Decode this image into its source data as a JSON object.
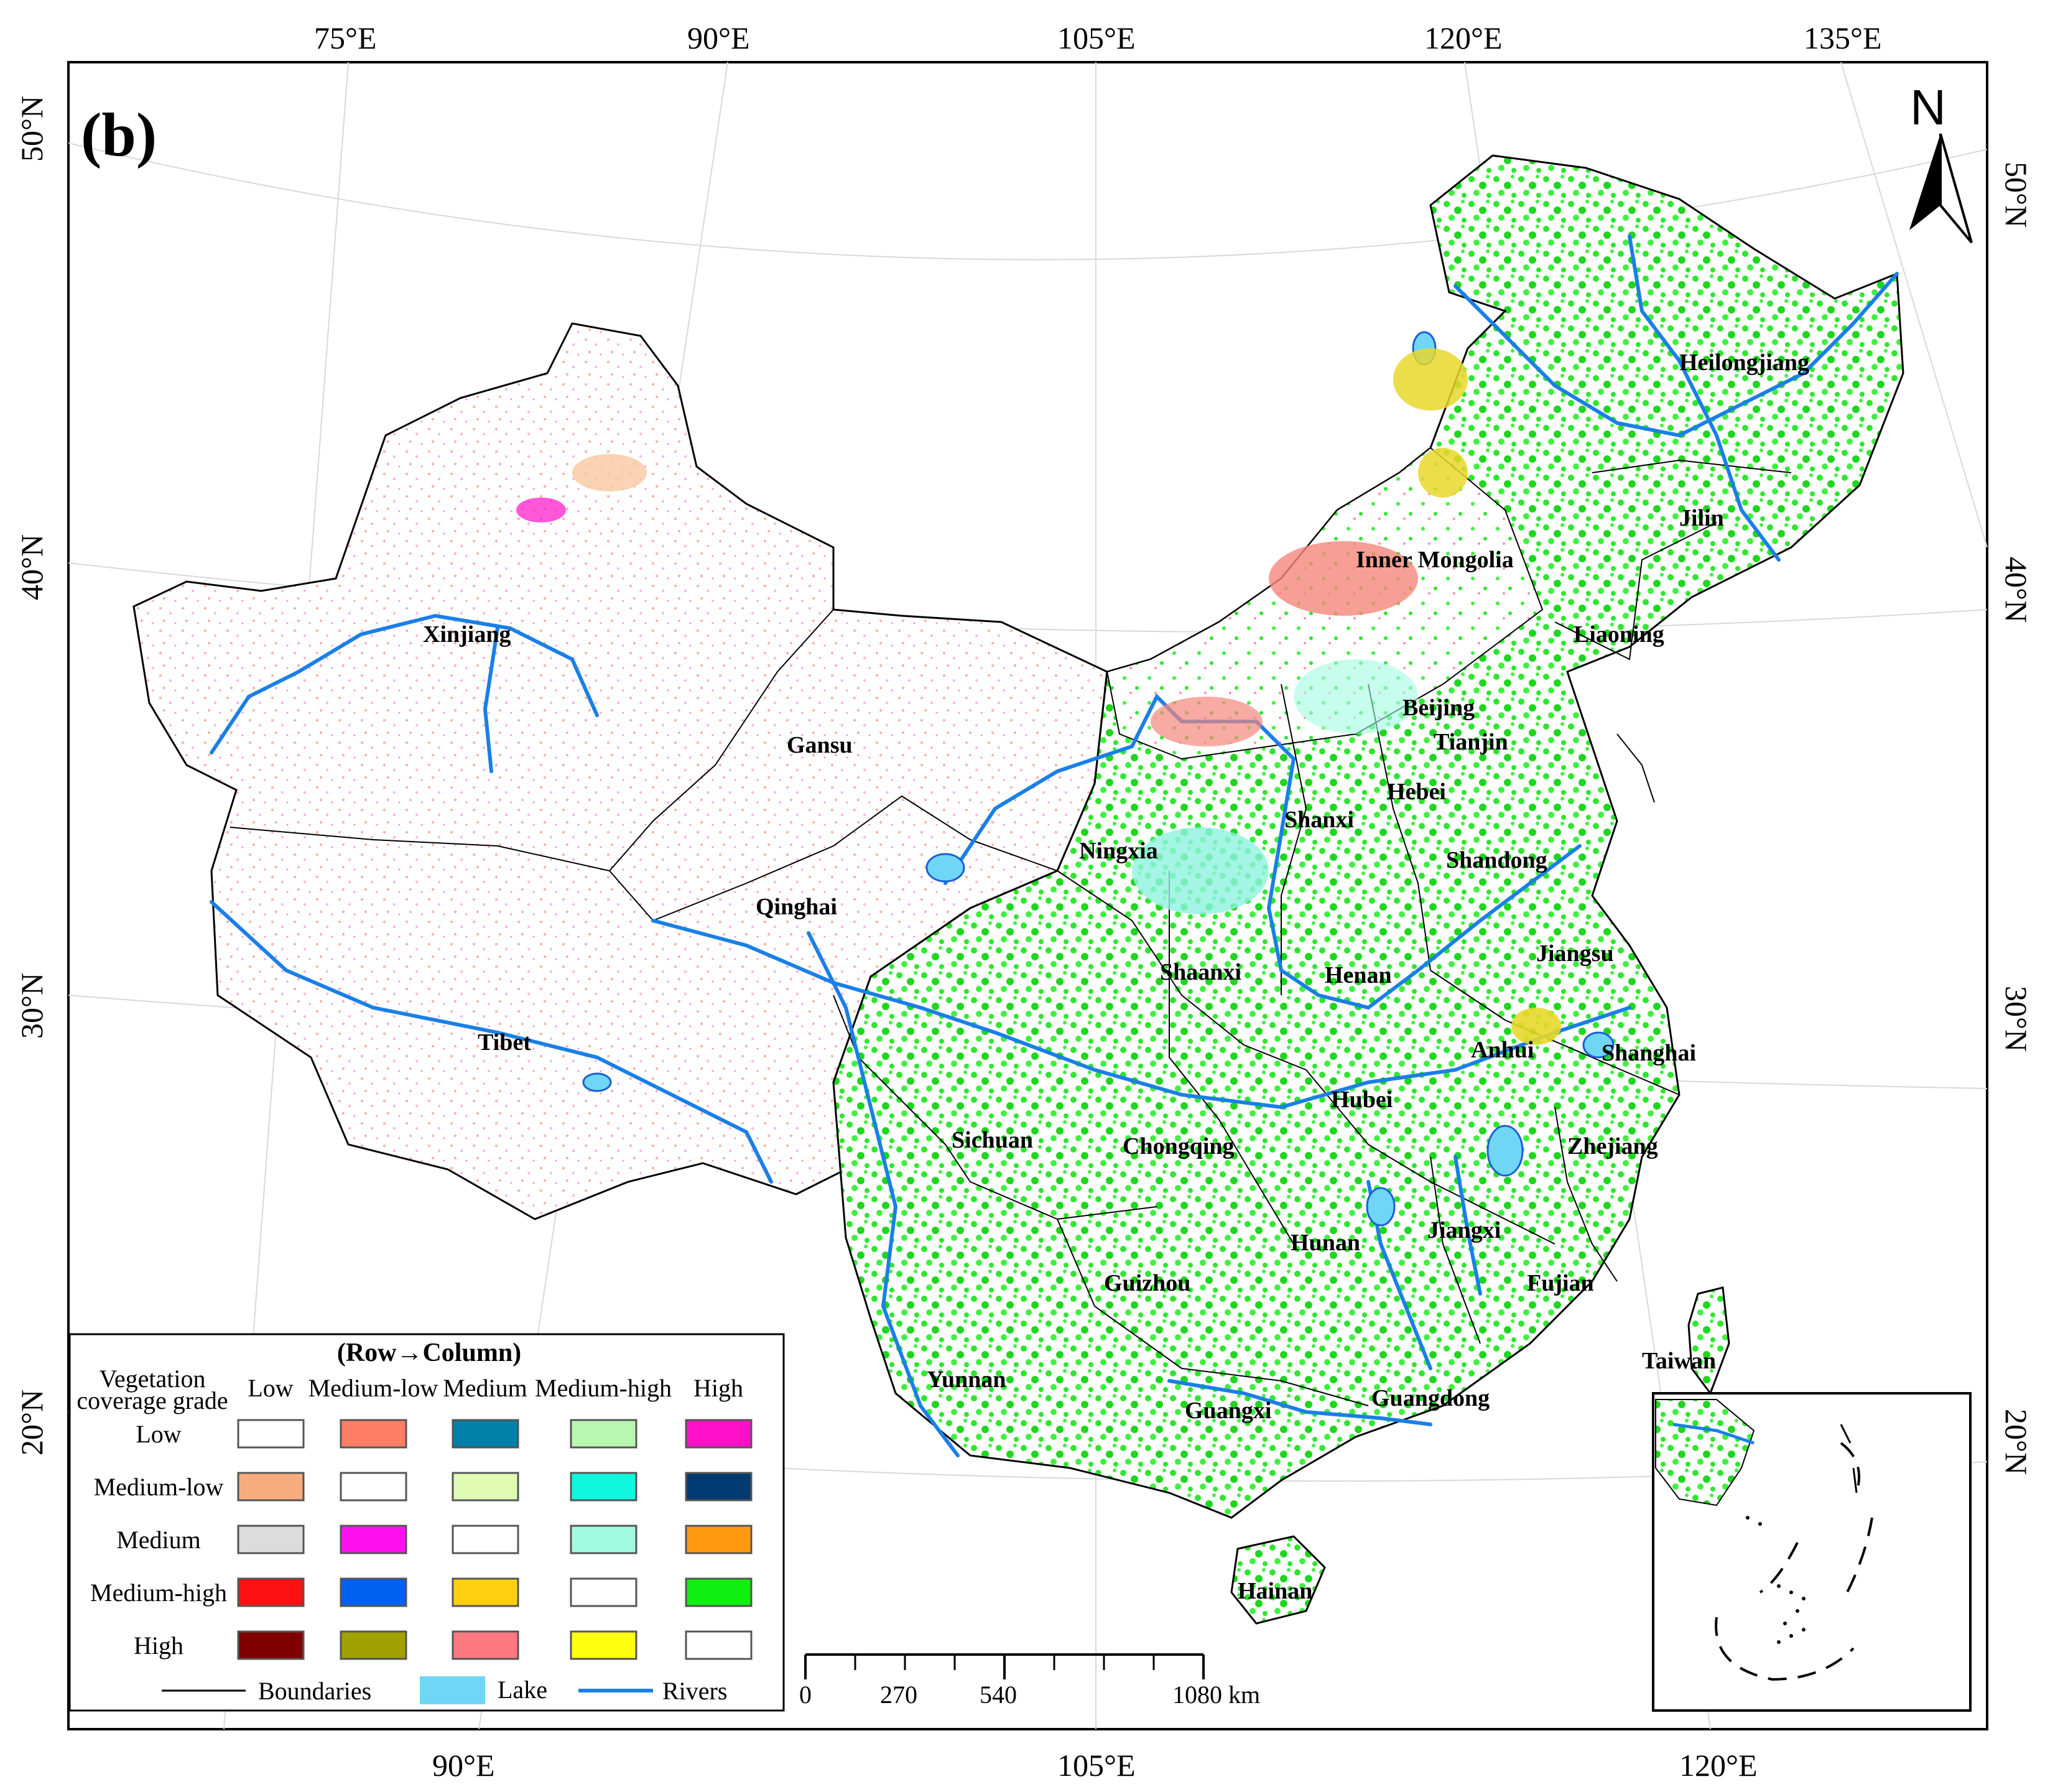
{
  "panel_label": "(b)",
  "north_label": "N",
  "top_ticks": [
    "75°E",
    "90°E",
    "105°E",
    "120°E",
    "135°E"
  ],
  "bottom_ticks": [
    "90°E",
    "105°E",
    "120°E"
  ],
  "left_ticks": [
    "50°N",
    "40°N",
    "30°N",
    "20°N"
  ],
  "right_ticks": [
    "50°N",
    "40°N",
    "30°N",
    "20°N"
  ],
  "provinces": [
    "Xinjiang",
    "Gansu",
    "Qinghai",
    "Tibet",
    "Sichuan",
    "Yunnan",
    "Ningxia",
    "Inner Mongolia",
    "Heilongjiang",
    "Jilin",
    "Liaoning",
    "Beijing",
    "Tianjin",
    "Hebei",
    "Shanxi",
    "Shandong",
    "Shaanxi",
    "Henan",
    "Jiangsu",
    "Anhui",
    "Shanghai",
    "Hubei",
    "Chongqing",
    "Zhejiang",
    "Hunan",
    "Jiangxi",
    "Guizhou",
    "Fujian",
    "Taiwan",
    "Guangxi",
    "Guangdong",
    "Hainan"
  ],
  "legend": {
    "title": "(Row→Column)",
    "corner_label_1": "Vegetation",
    "corner_label_2": "coverage grade",
    "columns": [
      "Low",
      "Medium-low",
      "Medium",
      "Medium-high",
      "High"
    ],
    "rows": [
      "Low",
      "Medium-low",
      "Medium",
      "Medium-high",
      "High"
    ],
    "colors": [
      [
        "#ffffff",
        "#ff7f66",
        "#0080a8",
        "#b8f7b0",
        "#ff10c8"
      ],
      [
        "#f8ac7e",
        "#ffffff",
        "#e0fbb4",
        "#10f7e0",
        "#003a70"
      ],
      [
        "#dcdcdc",
        "#ff10f0",
        "#ffffff",
        "#a0fce0",
        "#ff9a10"
      ],
      [
        "#ff1010",
        "#0060f0",
        "#ffd010",
        "#ffffff",
        "#10f010"
      ],
      [
        "#800000",
        "#a0a000",
        "#ff7a80",
        "#ffff10",
        "#ffffff"
      ]
    ],
    "boundaries_label": "Boundaries",
    "lake_label": "Lake",
    "rivers_label": "Rivers",
    "lake_color": "#6fd6f5",
    "river_color": "#1a7fe6"
  },
  "scale_bar": {
    "labels": [
      "0",
      "270",
      "540",
      "1080 km"
    ]
  }
}
